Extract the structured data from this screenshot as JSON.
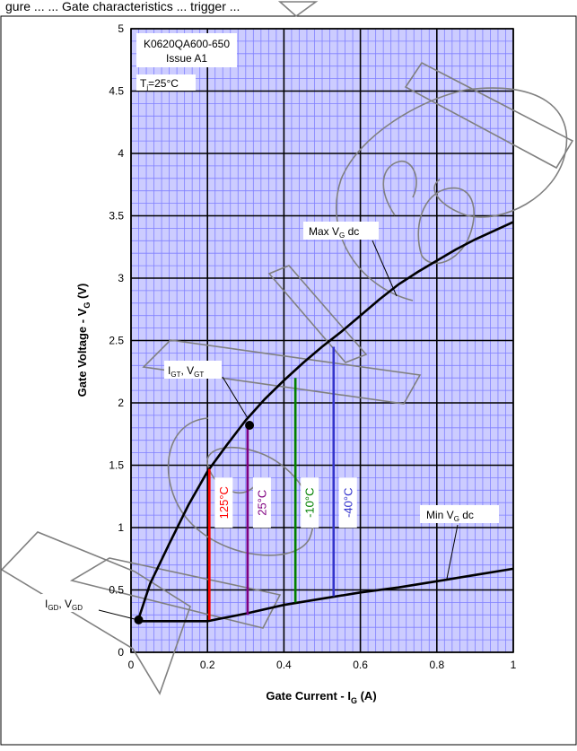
{
  "page": {
    "header_fragment": "gure ... ... Gate characteristics ... trigger ..."
  },
  "chart_data": {
    "type": "line",
    "title": "",
    "xlabel": "Gate Current - I",
    "xlabel_sub": "G",
    "xlabel_unit": " (A)",
    "ylabel": "Gate Voltage - V",
    "ylabel_sub": "G",
    "ylabel_unit": " (V)",
    "xlim": [
      0,
      1
    ],
    "ylim": [
      0,
      5
    ],
    "x_ticks": [
      "0",
      "0.2",
      "0.4",
      "0.6",
      "0.8",
      "1"
    ],
    "x_tick_values": [
      0,
      0.2,
      0.4,
      0.6,
      0.8,
      1
    ],
    "y_ticks": [
      "0",
      "0.5",
      "1",
      "1.5",
      "2",
      "2.5",
      "3",
      "3.5",
      "4",
      "4.5",
      "5"
    ],
    "y_tick_values": [
      0,
      0.5,
      1,
      1.5,
      2,
      2.5,
      3,
      3.5,
      4,
      4.5,
      5
    ],
    "grid": {
      "major_x": 0.2,
      "major_y": 0.5,
      "minor_x": 0.02,
      "minor_y": 0.1,
      "major_color": "#000000",
      "minor_color": "#8080ff",
      "background": "#ccccff"
    },
    "info_box": [
      "K0620QA600-650",
      "Issue A1"
    ],
    "temp_label": {
      "prefix": "T",
      "sub": "j",
      "suffix": "=25°C"
    },
    "series": [
      {
        "name": "Max V",
        "name_sub": "G",
        "name_suffix": " dc",
        "color": "#000000",
        "x": [
          0.02,
          0.05,
          0.1,
          0.15,
          0.2,
          0.25,
          0.3,
          0.35,
          0.4,
          0.45,
          0.5,
          0.55,
          0.6,
          0.65,
          0.7,
          0.75,
          0.8,
          0.85,
          0.9,
          0.95,
          1.0
        ],
        "y": [
          0.27,
          0.55,
          0.87,
          1.18,
          1.45,
          1.66,
          1.86,
          2.03,
          2.18,
          2.32,
          2.45,
          2.57,
          2.7,
          2.83,
          2.95,
          3.05,
          3.14,
          3.23,
          3.31,
          3.38,
          3.45
        ]
      },
      {
        "name": "Min V",
        "name_sub": "G",
        "name_suffix": " dc",
        "color": "#000000",
        "x": [
          0.02,
          0.1,
          0.2,
          0.3,
          0.4,
          0.5,
          0.6,
          0.7,
          0.8,
          0.9,
          1.0
        ],
        "y": [
          0.25,
          0.25,
          0.25,
          0.31,
          0.38,
          0.43,
          0.48,
          0.52,
          0.57,
          0.62,
          0.67
        ]
      }
    ],
    "temperature_lines": [
      {
        "label": "125°C",
        "x": 0.205,
        "y_bottom": 0.26,
        "y_top": 1.47,
        "color": "#ff0000"
      },
      {
        "label": "25°C",
        "x": 0.305,
        "y_bottom": 0.3,
        "y_top": 1.82,
        "color": "#800080"
      },
      {
        "label": "-10°C",
        "x": 0.43,
        "y_bottom": 0.4,
        "y_top": 2.2,
        "color": "#008000"
      },
      {
        "label": "-40°C",
        "x": 0.53,
        "y_bottom": 0.45,
        "y_top": 2.45,
        "color": "#3333cc"
      }
    ],
    "points": [
      {
        "name": "I",
        "name_sub": "GT",
        "mid": ", V",
        "mid_sub": "GT",
        "x": 0.31,
        "y": 1.82
      },
      {
        "name": "I",
        "name_sub": "GD",
        "mid": ", V",
        "mid_sub": "GD",
        "x": 0.02,
        "y": 0.26
      }
    ]
  }
}
